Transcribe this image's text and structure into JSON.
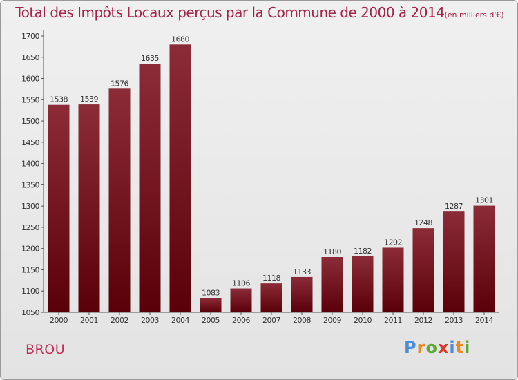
{
  "title": "Total des Impôts Locaux perçus par la Commune de 2000 à 2014",
  "unit": "(en milliers d'€)",
  "commune": "BROU",
  "logo": {
    "text": "Proxiti",
    "colors": [
      "#4b8ed6",
      "#e98b1f",
      "#5aaa35",
      "#d63a2c",
      "#4b8ed6",
      "#e98b1f",
      "#5aaa35"
    ]
  },
  "chart_data": {
    "type": "bar",
    "categories": [
      "2000",
      "2001",
      "2002",
      "2003",
      "2004",
      "2005",
      "2006",
      "2007",
      "2008",
      "2009",
      "2010",
      "2011",
      "2012",
      "2013",
      "2014"
    ],
    "values": [
      1538,
      1539,
      1576,
      1635,
      1680,
      1083,
      1106,
      1118,
      1133,
      1180,
      1182,
      1202,
      1248,
      1287,
      1301
    ],
    "ylim": [
      1050,
      1700
    ],
    "yticks": [
      1050,
      1100,
      1150,
      1200,
      1250,
      1300,
      1350,
      1400,
      1450,
      1500,
      1550,
      1600,
      1650,
      1700
    ],
    "grid": false,
    "bar_color_top": "#8b2c38",
    "bar_color_bottom": "#5a0008"
  }
}
